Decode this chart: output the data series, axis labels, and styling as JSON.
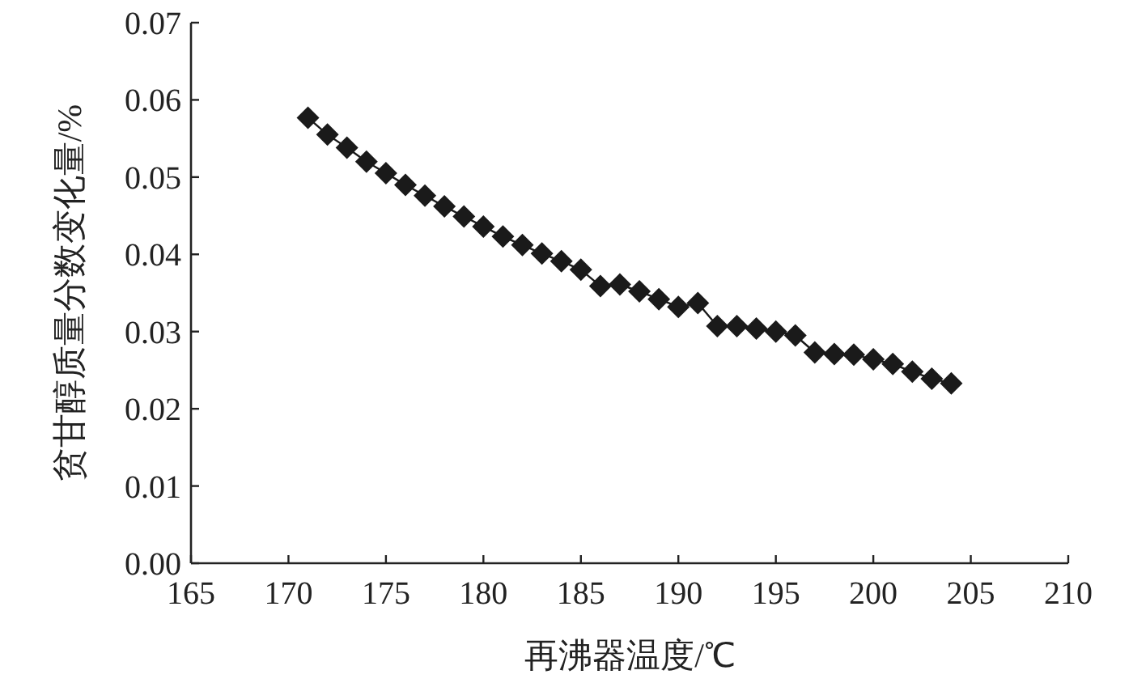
{
  "chart_data": {
    "type": "line",
    "xlabel": "再沸器温度/℃",
    "ylabel": "贫甘醇质量分数变化量/%",
    "x": [
      171,
      172,
      173,
      174,
      175,
      176,
      177,
      178,
      179,
      180,
      181,
      182,
      183,
      184,
      185,
      186,
      187,
      188,
      189,
      190,
      191,
      192,
      193,
      194,
      195,
      196,
      197,
      198,
      199,
      200,
      201,
      202,
      203,
      204
    ],
    "series": [
      {
        "color": "#1a1a1a",
        "values": [
          0.0577,
          0.0555,
          0.0538,
          0.052,
          0.0505,
          0.049,
          0.0476,
          0.0462,
          0.0449,
          0.0436,
          0.0423,
          0.0412,
          0.0401,
          0.0391,
          0.038,
          0.0359,
          0.0361,
          0.0352,
          0.0342,
          0.0332,
          0.0337,
          0.0307,
          0.0307,
          0.0304,
          0.03,
          0.0295,
          0.0273,
          0.0271,
          0.027,
          0.0264,
          0.0258,
          0.0248,
          0.0239,
          0.0233
        ]
      }
    ],
    "xlim": [
      165,
      210
    ],
    "xticks": [
      165,
      170,
      175,
      180,
      185,
      190,
      195,
      200,
      205,
      210
    ],
    "ylim": [
      0,
      0.07
    ],
    "yticks": [
      {
        "value": 0,
        "label": "0.00"
      },
      {
        "value": 0.01,
        "label": "0.01"
      },
      {
        "value": 0.02,
        "label": "0.02"
      },
      {
        "value": 0.03,
        "label": "0.03"
      },
      {
        "value": 0.04,
        "label": "0.04"
      },
      {
        "value": 0.05,
        "label": "0.05"
      },
      {
        "value": 0.06,
        "label": "0.06"
      },
      {
        "value": 0.07,
        "label": "0.07"
      }
    ],
    "grid": false,
    "marker": "diamond",
    "line_style": "solid"
  }
}
